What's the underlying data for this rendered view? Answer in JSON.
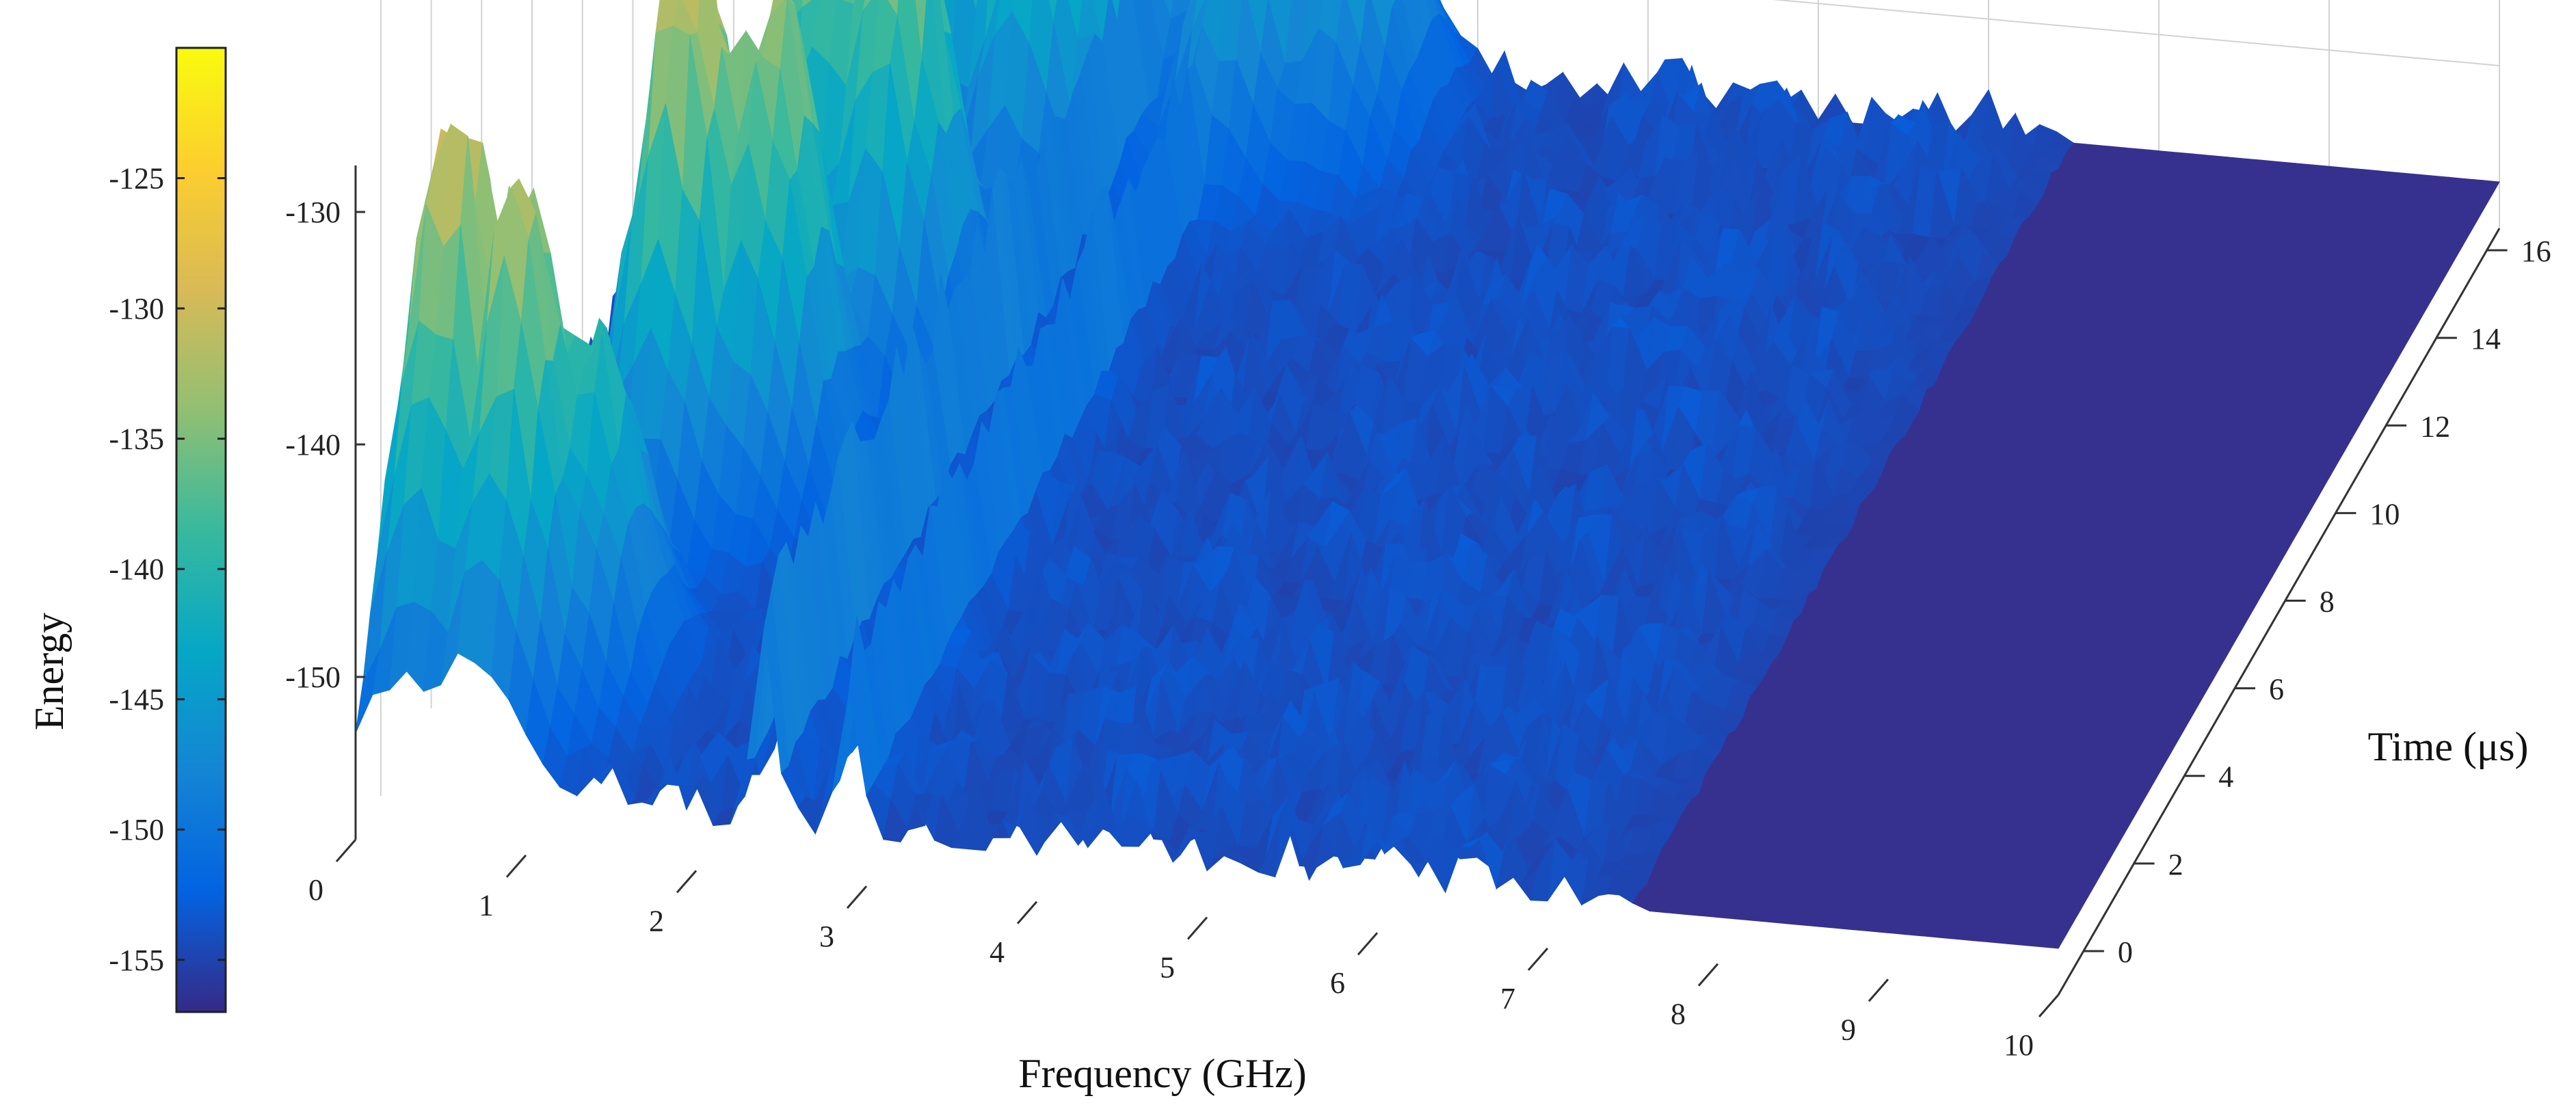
{
  "chart_data": {
    "type": "surface",
    "xlabel": "Frequency (GHz)",
    "ylabel": "Time (μs)",
    "zlabel": "Energy",
    "colorbar_label": "Energy",
    "xlim": [
      0,
      10
    ],
    "ylim": [
      -1,
      16.5
    ],
    "zlim": [
      -157,
      -120
    ],
    "x_ticks": [
      0,
      1,
      2,
      3,
      4,
      5,
      6,
      7,
      8,
      9,
      10
    ],
    "y_ticks": [
      0,
      2,
      4,
      6,
      8,
      10,
      12,
      14,
      16
    ],
    "z_ticks": [
      -150,
      -140,
      -130
    ],
    "colorbar_ticks": [
      -125,
      -130,
      -135,
      -140,
      -145,
      -150,
      -155
    ],
    "colorbar_range": [
      -157,
      -120
    ],
    "colormap": "parula",
    "colormap_stops": [
      "#352a87",
      "#0363e1",
      "#1485d4",
      "#06a7c6",
      "#38b99e",
      "#92bf73",
      "#d9ba56",
      "#fcce2e",
      "#f9fb0e"
    ],
    "noise_floor": -155,
    "surface_color": "#36318f",
    "grid": true,
    "peaks": [
      {
        "x": 0.3,
        "y": 1.0,
        "z": -127
      },
      {
        "x": 0.7,
        "y": 0.8,
        "z": -130
      },
      {
        "x": 1.0,
        "y": 1.5,
        "z": -137
      },
      {
        "x": 1.0,
        "y": 5.5,
        "z": -126
      },
      {
        "x": 1.4,
        "y": 6.0,
        "z": -131
      },
      {
        "x": 1.3,
        "y": 9.5,
        "z": -127
      },
      {
        "x": 1.7,
        "y": 9.0,
        "z": -131
      },
      {
        "x": 1.5,
        "y": 13.5,
        "z": -126
      },
      {
        "x": 2.0,
        "y": 13.0,
        "z": -129
      },
      {
        "x": 2.3,
        "y": 16.0,
        "z": -132
      },
      {
        "x": 3.0,
        "y": 14.5,
        "z": -136
      },
      {
        "x": 3.5,
        "y": 15.0,
        "z": -138
      }
    ],
    "ridges": [
      {
        "x": 2.4,
        "y_from": -1,
        "y_to": 16.5,
        "z": -144
      },
      {
        "x": 2.9,
        "y_from": -1,
        "y_to": 16.5,
        "z": -146
      }
    ]
  }
}
